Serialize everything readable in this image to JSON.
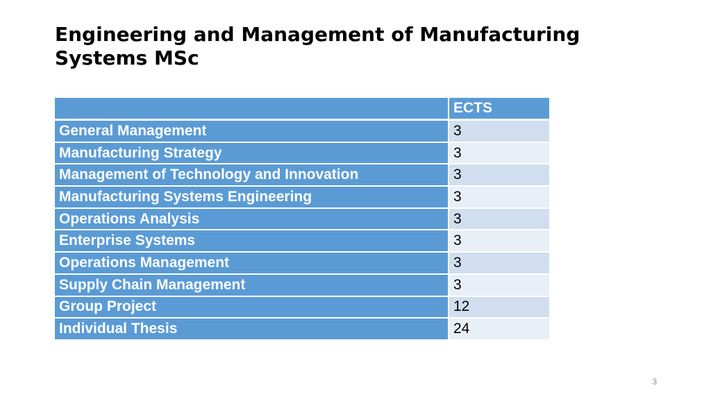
{
  "slide": {
    "title": "Engineering and Management of Manufacturing Systems MSc",
    "page_number": "3"
  },
  "table": {
    "header": {
      "name": "",
      "ects": "ECTS"
    },
    "rows": [
      {
        "name": "General Management",
        "ects": "3"
      },
      {
        "name": "Manufacturing Strategy",
        "ects": "3"
      },
      {
        "name": "Management of Technology and Innovation",
        "ects": "3"
      },
      {
        "name": "Manufacturing Systems Engineering",
        "ects": "3"
      },
      {
        "name": "Operations Analysis",
        "ects": "3"
      },
      {
        "name": "Enterprise Systems",
        "ects": "3"
      },
      {
        "name": "Operations Management",
        "ects": "3"
      },
      {
        "name": "Supply Chain Management",
        "ects": "3"
      },
      {
        "name": "Group Project",
        "ects": "12"
      },
      {
        "name": "Individual Thesis",
        "ects": "24"
      }
    ]
  },
  "colors": {
    "header_fill": "#5b9bd5",
    "row_band_dark": "#d0deef",
    "row_band_light": "#e9eff7"
  }
}
